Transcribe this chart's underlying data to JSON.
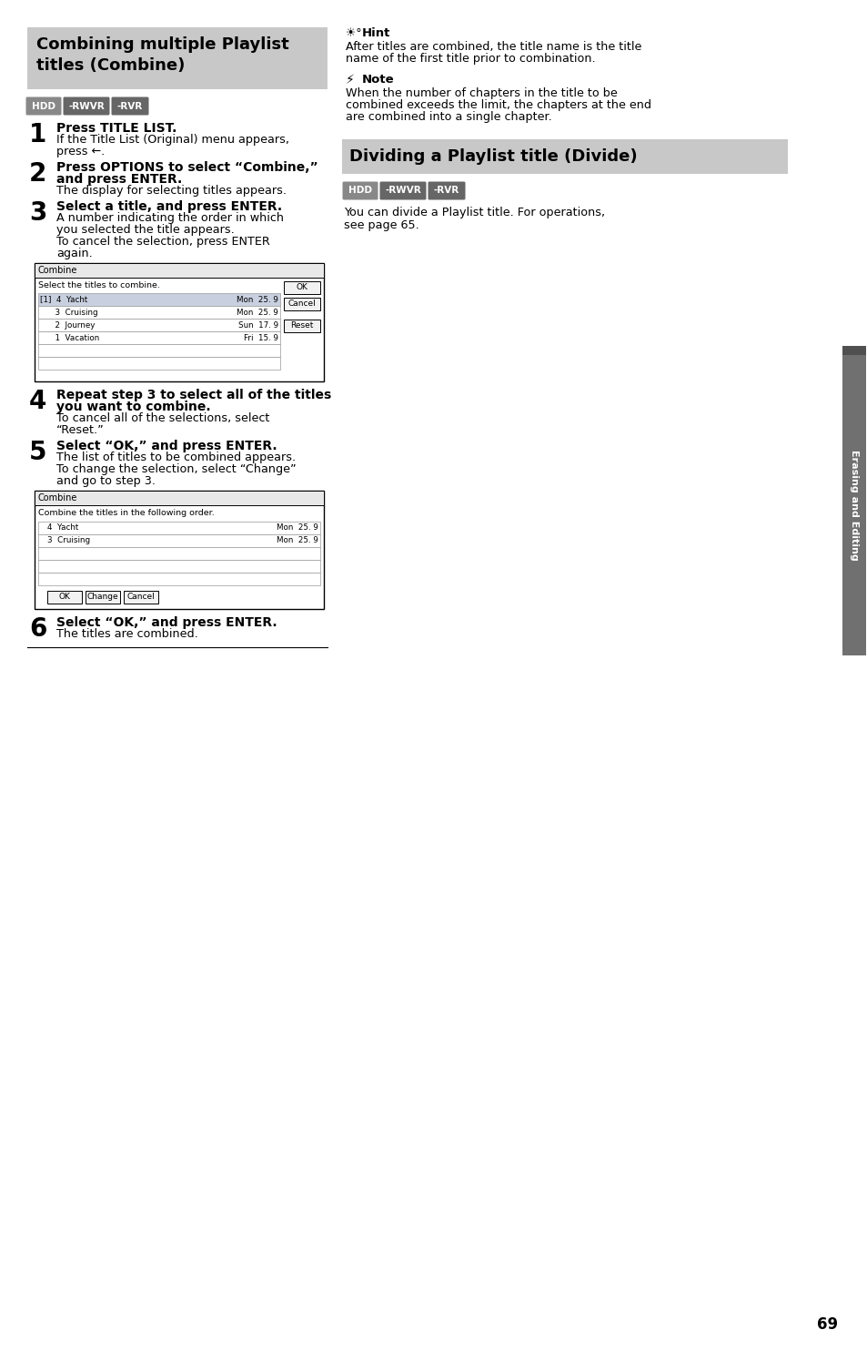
{
  "page_bg": "#ffffff",
  "section1_title": "Combining multiple Playlist\ntitles (Combine)",
  "section1_title_bg": "#c8c8c8",
  "section2_title": "Dividing a Playlist title (Divide)",
  "section2_title_bg": "#c8c8c8",
  "section2_title_color": "#000000",
  "hdd_color": "#888888",
  "rwvr_color": "#666666",
  "rvr_color": "#666666",
  "sidebar_text": "Erasing and Editing",
  "sidebar_bg": "#707070",
  "sidebar_top_bar": "#505050",
  "hint_header": "Hint",
  "hint_body": "After titles are combined, the title name is the title\nname of the first title prior to combination.",
  "note_header": "Note",
  "note_body": "When the number of chapters in the title to be\ncombined exceeds the limit, the chapters at the end\nare combined into a single chapter.",
  "divide_body": "You can divide a Playlist title. For operations,\nsee page 65.",
  "page_num": "69",
  "steps_left": [
    {
      "num": "1",
      "bold": "Press TITLE LIST.",
      "body": "If the Title List (Original) menu appears,\npress ←."
    },
    {
      "num": "2",
      "bold": "Press OPTIONS to select “Combine,”\nand press ENTER.",
      "body": "The display for selecting titles appears."
    },
    {
      "num": "3",
      "bold": "Select a title, and press ENTER.",
      "body": "A number indicating the order in which\nyou selected the title appears.\nTo cancel the selection, press ENTER\nagain."
    },
    {
      "num": "4",
      "bold": "Repeat step 3 to select all of the titles\nyou want to combine.",
      "body": "To cancel all of the selections, select\n“Reset.”"
    },
    {
      "num": "5",
      "bold": "Select “OK,” and press ENTER.",
      "body": "The list of titles to be combined appears.\nTo change the selection, select “Change”\nand go to step 3."
    },
    {
      "num": "6",
      "bold": "Select “OK,” and press ENTER.",
      "body": "The titles are combined."
    }
  ],
  "dialog1": {
    "title": "Combine",
    "instruction": "Select the titles to combine.",
    "entries": [
      {
        "num": "1",
        "count": "4",
        "name": "Yacht",
        "day": "Mon",
        "date": "25. 9",
        "selected": true
      },
      {
        "num": "",
        "count": "3",
        "name": "Cruising",
        "day": "Mon",
        "date": "25. 9",
        "selected": false
      },
      {
        "num": "",
        "count": "2",
        "name": "Journey",
        "day": "Sun",
        "date": "17. 9",
        "selected": false
      },
      {
        "num": "",
        "count": "1",
        "name": "Vacation",
        "day": "Fri",
        "date": "15. 9",
        "selected": false
      }
    ],
    "buttons": [
      "OK",
      "Cancel",
      "Reset"
    ],
    "blank_rows": 2
  },
  "dialog2": {
    "title": "Combine",
    "instruction": "Combine the titles in the following order.",
    "entries": [
      {
        "count": "4",
        "name": "Yacht",
        "day": "Mon",
        "date": "25. 9"
      },
      {
        "count": "3",
        "name": "Cruising",
        "day": "Mon",
        "date": "25. 9"
      }
    ],
    "blank_rows": 3,
    "bottom_buttons": [
      "OK",
      "Change",
      "Cancel"
    ]
  }
}
